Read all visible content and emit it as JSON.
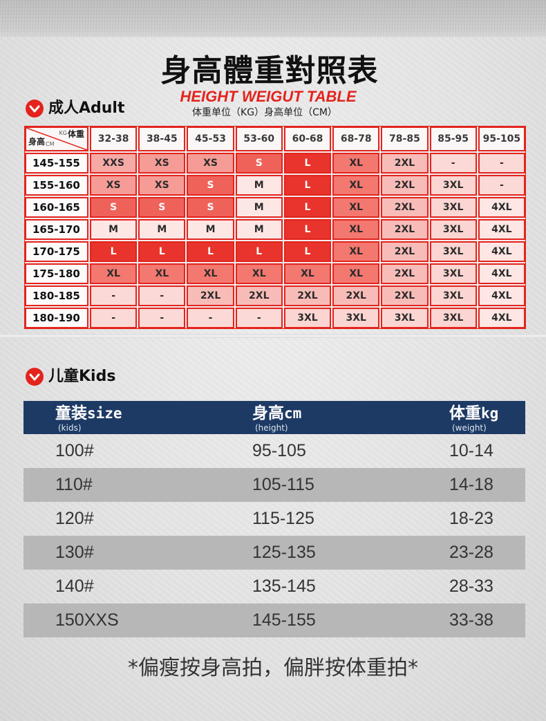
{
  "title": "身高體重對照表",
  "subtitle": "HEIGHT WEIGUT TABLE",
  "units_note": "体重单位（KG）身高单位（CM）",
  "icons": {
    "section_marker": "chevron-down-icon"
  },
  "adult": {
    "section_label": "成人Adult",
    "corner": {
      "weight_unit": "KG",
      "weight_label": "体重",
      "height_label": "身高",
      "height_unit": "CM"
    },
    "weight_ranges": [
      "32-38",
      "38-45",
      "45-53",
      "53-60",
      "60-68",
      "68-78",
      "78-85",
      "85-95",
      "95-105"
    ],
    "rows": [
      {
        "height": "145-155",
        "sizes": [
          "XXS",
          "XS",
          "XS",
          "S",
          "L",
          "XL",
          "2XL",
          "-",
          "-"
        ]
      },
      {
        "height": "155-160",
        "sizes": [
          "XS",
          "XS",
          "S",
          "M",
          "L",
          "XL",
          "2XL",
          "3XL",
          "-"
        ]
      },
      {
        "height": "160-165",
        "sizes": [
          "S",
          "S",
          "S",
          "M",
          "L",
          "XL",
          "2XL",
          "3XL",
          "4XL"
        ]
      },
      {
        "height": "165-170",
        "sizes": [
          "M",
          "M",
          "M",
          "M",
          "L",
          "XL",
          "2XL",
          "3XL",
          "4XL"
        ]
      },
      {
        "height": "170-175",
        "sizes": [
          "L",
          "L",
          "L",
          "L",
          "L",
          "XL",
          "2XL",
          "3XL",
          "4XL"
        ]
      },
      {
        "height": "175-180",
        "sizes": [
          "XL",
          "XL",
          "XL",
          "XL",
          "XL",
          "XL",
          "2XL",
          "3XL",
          "4XL"
        ]
      },
      {
        "height": "180-185",
        "sizes": [
          "-",
          "-",
          "2XL",
          "2XL",
          "2XL",
          "2XL",
          "2XL",
          "3XL",
          "4XL"
        ]
      },
      {
        "height": "180-190",
        "sizes": [
          "-",
          "-",
          "-",
          "-",
          "3XL",
          "3XL",
          "3XL",
          "3XL",
          "4XL"
        ]
      }
    ]
  },
  "kids": {
    "section_label": "儿童Kids",
    "headers": [
      {
        "cn": "童装",
        "en": "size",
        "sub": "(kids)"
      },
      {
        "cn": "身高",
        "en": "cm",
        "sub": "(height)"
      },
      {
        "cn": "体重",
        "en": "kg",
        "sub": "(weight)"
      }
    ],
    "rows": [
      [
        "100#",
        "95-105",
        "10-14"
      ],
      [
        "110#",
        "105-115",
        "14-18"
      ],
      [
        "120#",
        "115-125",
        "18-23"
      ],
      [
        "130#",
        "125-135",
        "23-28"
      ],
      [
        "140#",
        "135-145",
        "28-33"
      ],
      [
        "150XXS",
        "145-155",
        "33-38"
      ]
    ]
  },
  "footer_note": "*偏瘦按身高拍，偏胖按体重拍*",
  "colors": {
    "accent_red": "#e3231d",
    "kids_header_bg": "#1d3a64",
    "kids_band": "#b7b7b7",
    "size_fill": {
      "XXS": "#f6aaa6",
      "XS": "#f59c97",
      "S": "#ef625a",
      "M": "#fde7e5",
      "L": "#e8342c",
      "XL": "#f37870",
      "2XL": "#f8bcb8",
      "3XL": "#fbd5d2",
      "4XL": "#fde6e4",
      "-": "#fad9d6"
    },
    "size_text": {
      "L": "#ffffff",
      "S": "#ffffff"
    }
  }
}
